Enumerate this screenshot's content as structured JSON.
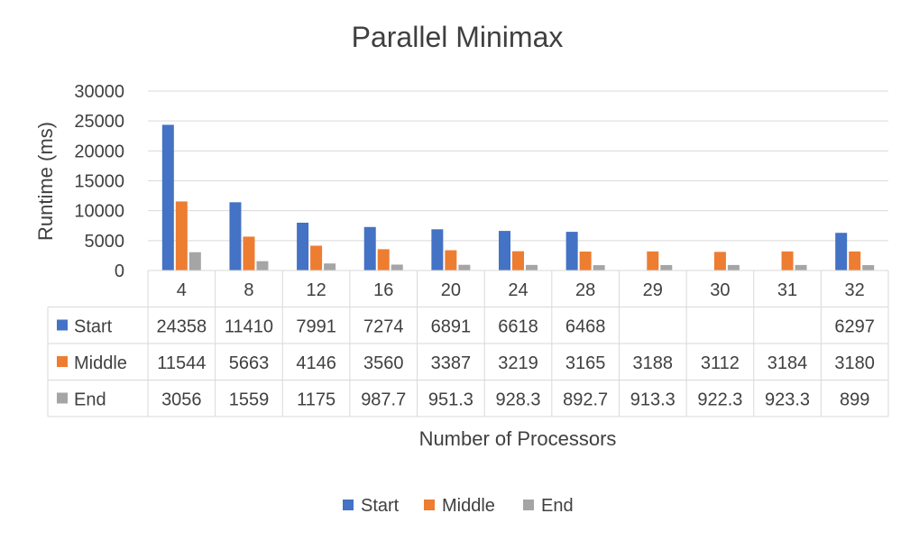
{
  "chart_data": {
    "type": "bar",
    "title": "Parallel Minimax",
    "xlabel": "Number of Processors",
    "ylabel": "Runtime (ms)",
    "ylim": [
      0,
      30000
    ],
    "yticks": [
      "0",
      "5000",
      "10000",
      "15000",
      "20000",
      "25000",
      "30000"
    ],
    "grid": true,
    "legend_position": "bottom",
    "categories": [
      "4",
      "8",
      "12",
      "16",
      "20",
      "24",
      "28",
      "29",
      "30",
      "31",
      "32"
    ],
    "series": [
      {
        "name": "Start",
        "color": "#4472C4",
        "values": [
          24358,
          11410,
          7991,
          7274,
          6891,
          6618,
          6468,
          null,
          null,
          null,
          6297
        ],
        "labels": [
          "24358",
          "11410",
          "7991",
          "7274",
          "6891",
          "6618",
          "6468",
          "",
          "",
          "",
          "6297"
        ]
      },
      {
        "name": "Middle",
        "color": "#ED7D31",
        "values": [
          11544,
          5663,
          4146,
          3560,
          3387,
          3219,
          3165,
          3188,
          3112,
          3184,
          3180
        ],
        "labels": [
          "11544",
          "5663",
          "4146",
          "3560",
          "3387",
          "3219",
          "3165",
          "3188",
          "3112",
          "3184",
          "3180"
        ]
      },
      {
        "name": "End",
        "color": "#A5A5A5",
        "values": [
          3056,
          1559,
          1175,
          987.7,
          951.3,
          928.3,
          892.7,
          913.3,
          922.3,
          923.3,
          899
        ],
        "labels": [
          "3056",
          "1559",
          "1175",
          "987.7",
          "951.3",
          "928.3",
          "892.7",
          "913.3",
          "922.3",
          "923.3",
          "899"
        ]
      }
    ]
  }
}
